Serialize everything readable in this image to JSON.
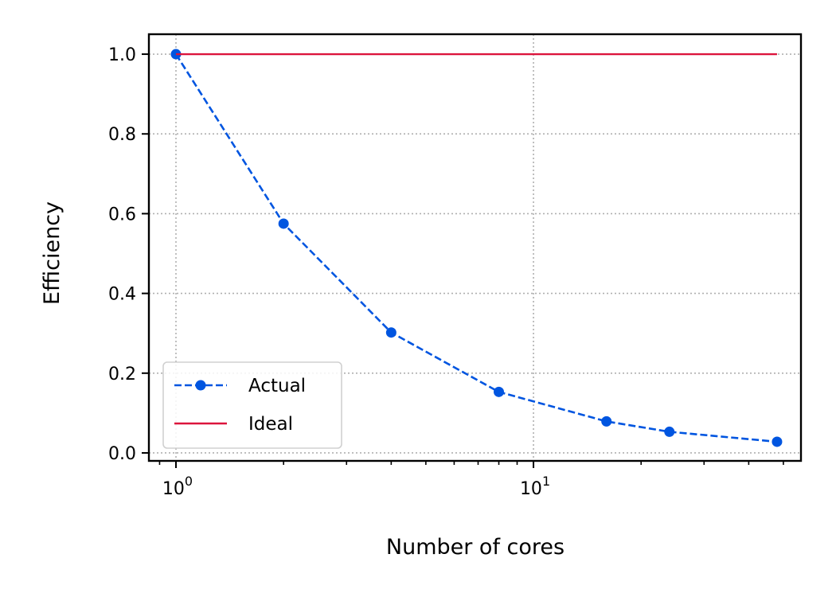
{
  "chart_data": {
    "type": "line",
    "title": "",
    "xlabel": "Number of cores",
    "ylabel": "Efficiency",
    "xscale": "log",
    "xlim": [
      0.84,
      56
    ],
    "ylim": [
      -0.02,
      1.05
    ],
    "grid": true,
    "legend_position": "lower-left",
    "x_major_ticks": [
      {
        "value": 1,
        "base": "10",
        "exp": "0"
      },
      {
        "value": 10,
        "base": "10",
        "exp": "1"
      }
    ],
    "y_ticks": [
      {
        "value": 0.0,
        "label": "0.0"
      },
      {
        "value": 0.2,
        "label": "0.2"
      },
      {
        "value": 0.4,
        "label": "0.4"
      },
      {
        "value": 0.6,
        "label": "0.6"
      },
      {
        "value": 0.8,
        "label": "0.8"
      },
      {
        "value": 1.0,
        "label": "1.0"
      }
    ],
    "series": [
      {
        "name": "Actual",
        "color": "#0055e0",
        "style": "dashed",
        "marker": "circle",
        "x": [
          1,
          2,
          4,
          8,
          16,
          24,
          48
        ],
        "y": [
          1.0,
          0.575,
          0.302,
          0.153,
          0.079,
          0.053,
          0.028
        ]
      },
      {
        "name": "Ideal",
        "color": "#dc143c",
        "style": "solid",
        "marker": "none",
        "x": [
          1,
          48
        ],
        "y": [
          1.0,
          1.0
        ]
      }
    ]
  }
}
